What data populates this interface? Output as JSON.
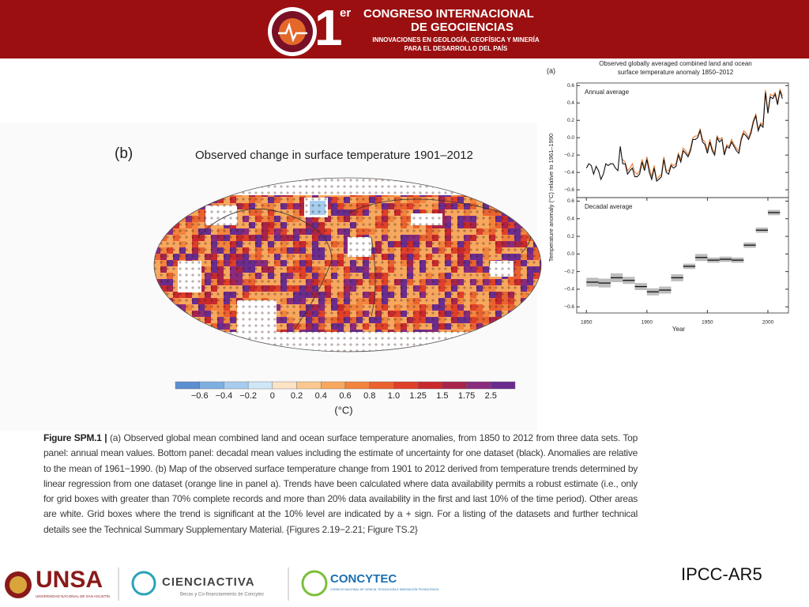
{
  "header": {
    "badge": "1",
    "badge_suffix": "er",
    "title_line1": "CONGRESO INTERNACIONAL",
    "title_line2": "DE GEOCIENCIAS",
    "subtitle_line1": "INNOVACIONES EN GEOLOGÍA, GEOFÍSICA Y MINERÍA",
    "subtitle_line2": "PARA EL DESARROLLO DEL PAÍS"
  },
  "figure_a": {
    "label": "(a)",
    "title_line1": "Observed globally averaged combined land and ocean",
    "title_line2": "surface temperature anomaly 1850–2012",
    "y_label": "Temperature anomaly (°C) relative to 1961–1990"
  },
  "chart_data": [
    {
      "type": "line",
      "title": "Annual average",
      "xlim": [
        1842,
        2017
      ],
      "ylim": [
        -0.69,
        0.63
      ],
      "yticks": [
        {
          "value": -0.6,
          "label": "−0.6"
        },
        {
          "value": -0.4,
          "label": "−0.4"
        },
        {
          "value": -0.2,
          "label": "−0.2"
        },
        {
          "value": 0,
          "label": "0.0"
        },
        0.2,
        0.4,
        0.6
      ],
      "x": [
        1850,
        1852,
        1854,
        1856,
        1858,
        1860,
        1862,
        1864,
        1866,
        1868,
        1870,
        1872,
        1874,
        1876,
        1878,
        1880,
        1882,
        1884,
        1886,
        1888,
        1890,
        1892,
        1894,
        1896,
        1898,
        1900,
        1902,
        1904,
        1906,
        1908,
        1910,
        1912,
        1914,
        1916,
        1918,
        1920,
        1922,
        1924,
        1926,
        1928,
        1930,
        1932,
        1934,
        1936,
        1938,
        1940,
        1942,
        1944,
        1946,
        1948,
        1950,
        1952,
        1954,
        1956,
        1958,
        1960,
        1962,
        1964,
        1966,
        1968,
        1970,
        1972,
        1974,
        1976,
        1978,
        1980,
        1982,
        1984,
        1986,
        1988,
        1990,
        1992,
        1994,
        1996,
        1998,
        2000,
        2002,
        2004,
        2006,
        2008,
        2010,
        2012
      ],
      "series": [
        {
          "color": "#e07b39",
          "values": [
            null,
            null,
            null,
            null,
            null,
            null,
            null,
            null,
            null,
            null,
            null,
            null,
            null,
            null,
            null,
            -0.25,
            -0.28,
            -0.38,
            -0.35,
            -0.3,
            -0.4,
            -0.42,
            -0.38,
            -0.25,
            -0.35,
            -0.22,
            -0.35,
            -0.45,
            -0.32,
            -0.48,
            -0.45,
            -0.42,
            -0.22,
            -0.38,
            -0.38,
            -0.3,
            -0.32,
            -0.3,
            -0.18,
            -0.25,
            -0.12,
            -0.15,
            -0.2,
            -0.12,
            0.0,
            0.02,
            0.02,
            0.1,
            -0.02,
            -0.05,
            -0.15,
            -0.02,
            -0.12,
            -0.18,
            0.02,
            -0.02,
            0.0,
            -0.18,
            -0.08,
            -0.1,
            -0.02,
            -0.08,
            -0.12,
            -0.15,
            0.0,
            0.08,
            0.05,
            0.0,
            0.08,
            0.2,
            0.27,
            0.1,
            0.17,
            0.15,
            0.55,
            0.3,
            0.5,
            0.48,
            0.52,
            0.4,
            0.56,
            0.48
          ]
        },
        {
          "color": "#111111",
          "values": [
            -0.35,
            -0.3,
            -0.32,
            -0.42,
            -0.33,
            -0.38,
            -0.48,
            -0.42,
            -0.3,
            -0.32,
            -0.3,
            -0.3,
            -0.35,
            -0.38,
            -0.1,
            -0.3,
            -0.3,
            -0.42,
            -0.38,
            -0.35,
            -0.45,
            -0.45,
            -0.42,
            -0.28,
            -0.38,
            -0.25,
            -0.4,
            -0.48,
            -0.35,
            -0.5,
            -0.48,
            -0.45,
            -0.25,
            -0.4,
            -0.42,
            -0.32,
            -0.35,
            -0.33,
            -0.2,
            -0.28,
            -0.15,
            -0.18,
            -0.22,
            -0.15,
            -0.02,
            -0.02,
            0.0,
            0.08,
            -0.05,
            -0.08,
            -0.18,
            -0.05,
            -0.15,
            -0.2,
            0.0,
            -0.05,
            -0.02,
            -0.2,
            -0.1,
            -0.12,
            -0.05,
            -0.1,
            -0.15,
            -0.18,
            -0.02,
            0.05,
            0.02,
            -0.02,
            0.05,
            0.18,
            0.25,
            0.08,
            0.15,
            0.12,
            0.52,
            0.28,
            0.47,
            0.45,
            0.5,
            0.38,
            0.54,
            0.45
          ]
        }
      ]
    },
    {
      "type": "errorbar",
      "title": "Decadal average",
      "x_label": "Year",
      "xlim": [
        1842,
        2017
      ],
      "ylim": [
        -0.67,
        0.64
      ],
      "xticks": [
        1850,
        1900,
        1950,
        2000
      ],
      "yticks": [
        {
          "value": -0.6,
          "label": "−0.6"
        },
        {
          "value": -0.4,
          "label": "−0.4"
        },
        {
          "value": -0.2,
          "label": "−0.2"
        },
        {
          "value": 0,
          "label": "0.0"
        },
        0.2,
        0.4,
        0.6
      ],
      "x": [
        1850,
        1860,
        1870,
        1880,
        1890,
        1900,
        1910,
        1920,
        1930,
        1940,
        1950,
        1960,
        1970,
        1980,
        1990,
        2000
      ],
      "series": [
        {
          "color": "#111111",
          "values": [
            -0.32,
            -0.33,
            -0.27,
            -0.3,
            -0.37,
            -0.43,
            -0.41,
            -0.27,
            -0.14,
            -0.04,
            -0.07,
            -0.06,
            -0.07,
            0.1,
            0.27,
            0.47
          ],
          "errors": [
            0.05,
            0.05,
            0.05,
            0.04,
            0.04,
            0.04,
            0.04,
            0.04,
            0.03,
            0.04,
            0.03,
            0.03,
            0.03,
            0.03,
            0.03,
            0.03
          ]
        }
      ]
    }
  ],
  "figure_b": {
    "label": "(b)",
    "title": "Observed change in surface temperature 1901–2012",
    "unit": "(°C)",
    "colorbar_labels": [
      "−0.6",
      "−0.4",
      "−0.2",
      "0",
      "0.2",
      "0.4",
      "0.6",
      "0.8",
      "1.0",
      "1.25",
      "1.5",
      "1.75",
      "2.5"
    ],
    "colorbar_colors": [
      "#5b8fd0",
      "#7eaee0",
      "#a6cdee",
      "#cfe6f7",
      "#fde3c6",
      "#fbc98f",
      "#f7a85e",
      "#f2843e",
      "#ea6230",
      "#e03f2a",
      "#c9292d",
      "#a8244a",
      "#8a2b7e",
      "#6a2c8e"
    ]
  },
  "caption": {
    "label": "Figure SPM.1 |",
    "text": "(a) Observed global mean combined land and ocean surface temperature anomalies, from 1850 to 2012 from three data sets. Top panel: annual mean values. Bottom panel: decadal mean values including the estimate of uncertainty for one dataset (black). Anomalies are relative to the mean of 1961−1990. (b) Map of the observed surface temperature change from 1901 to 2012 derived from temperature trends determined by linear regression from one dataset (orange line in panel a). Trends have been calculated where data availability permits a robust estimate (i.e., only for grid boxes with greater than 70% complete records and more than 20% data availability in the first and last 10% of the time period). Other areas are white. Grid boxes where the trend is significant at the 10% level are indicated by a + sign. For a listing of the datasets and further technical details see the Technical Summary Supplementary Material. {Figures 2.19−2.21; Figure TS.2}"
  },
  "footer": {
    "unsa": "UNSA",
    "unsa_sub": "UNIVERSIDAD NACIONAL DE SAN AGUSTÍN",
    "cienciactiva": "CIENCIACTIVA",
    "cienciactiva_sub": "Becas y Co-financiamiento de Concytec",
    "concytec": "CONCYTEC",
    "concytec_sub": "CONSEJO NACIONAL DE CIENCIA, TECNOLOGÍA E INNOVACIÓN TECNOLÓGICA",
    "source": "IPCC-AR5"
  }
}
